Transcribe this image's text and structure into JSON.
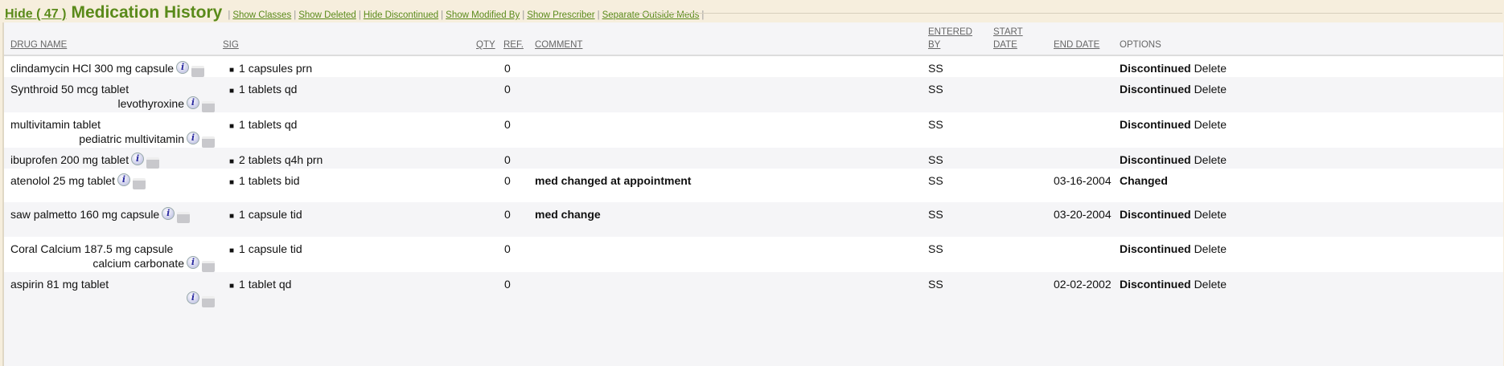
{
  "header": {
    "hide_label": "Hide",
    "count": "( 47 )",
    "title": "Medication History",
    "links": [
      "Show Classes",
      "Show Deleted",
      "Hide Discontinued",
      "Show Modified By",
      "Show Prescriber",
      "Separate Outside Meds"
    ]
  },
  "columns": {
    "drug": "DRUG NAME",
    "sig": "SIG",
    "qty": "QTY",
    "ref": "REF.",
    "comment": "COMMENT",
    "entered1": "ENTERED",
    "entered2": "BY",
    "start1": "START",
    "start2": "DATE",
    "end": "END DATE",
    "options": "OPTIONS"
  },
  "icons": {
    "info": "info-icon",
    "print": "printer-icon"
  },
  "rows": [
    {
      "drug": "clindamycin HCl 300 mg capsule",
      "generic": "",
      "sig": "1 capsules prn",
      "qty": "",
      "ref": "0",
      "comment": "",
      "entered": "SS",
      "start": "",
      "end": "",
      "status": "Discontinued",
      "action": "Delete"
    },
    {
      "drug": "Synthroid 50 mcg tablet",
      "generic": "levothyroxine",
      "sig": "1 tablets qd",
      "qty": "",
      "ref": "0",
      "comment": "",
      "entered": "SS",
      "start": "",
      "end": "",
      "status": "Discontinued",
      "action": "Delete"
    },
    {
      "drug": "multivitamin tablet",
      "generic": "pediatric multivitamin",
      "sig": "1 tablets qd",
      "qty": "",
      "ref": "0",
      "comment": "",
      "entered": "SS",
      "start": "",
      "end": "",
      "status": "Discontinued",
      "action": "Delete"
    },
    {
      "drug": "ibuprofen 200 mg tablet",
      "generic": "",
      "sig": "2 tablets q4h prn",
      "qty": "",
      "ref": "0",
      "comment": "",
      "entered": "SS",
      "start": "",
      "end": "",
      "status": "Discontinued",
      "action": "Delete"
    },
    {
      "drug": "atenolol 25 mg tablet",
      "generic": "",
      "sig": "1 tablets bid",
      "qty": "",
      "ref": "0",
      "comment": "med changed at appointment",
      "entered": "SS",
      "start": "",
      "end": "03-16-2004",
      "status": "Changed",
      "action": ""
    },
    {
      "drug": "saw palmetto 160 mg capsule",
      "generic": "",
      "sig": "1 capsule tid",
      "qty": "",
      "ref": "0",
      "comment": "med change",
      "entered": "SS",
      "start": "",
      "end": "03-20-2004",
      "status": "Discontinued",
      "action": "Delete"
    },
    {
      "drug": "Coral Calcium 187.5 mg capsule",
      "generic": "calcium carbonate",
      "sig": "1 capsule tid",
      "qty": "",
      "ref": "0",
      "comment": "",
      "entered": "SS",
      "start": "",
      "end": "",
      "status": "Discontinued",
      "action": "Delete"
    },
    {
      "drug": "aspirin 81 mg tablet",
      "generic": "",
      "sig": "1 tablet qd",
      "qty": "",
      "ref": "0",
      "comment": "",
      "entered": "SS",
      "start": "",
      "end": "02-02-2002",
      "status": "Discontinued",
      "action": "Delete"
    }
  ]
}
